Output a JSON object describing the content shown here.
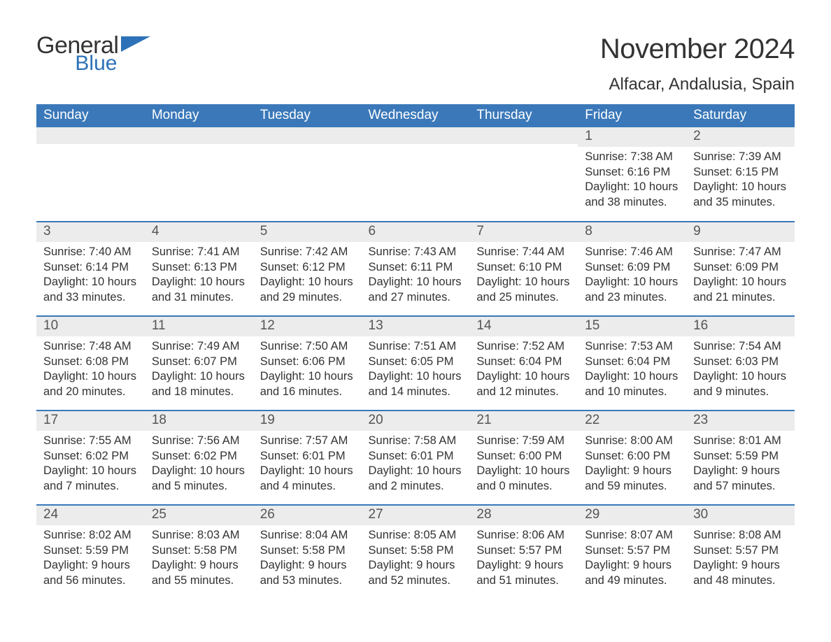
{
  "brand": {
    "line1": "General",
    "line2": "Blue",
    "accent_color": "#2d72b8"
  },
  "title": "November 2024",
  "location": "Alfacar, Andalusia, Spain",
  "colors": {
    "header_bg": "#3a78b9",
    "header_text": "#ffffff",
    "band_bg": "#ececec",
    "row_divider": "#3a78b9",
    "body_text": "#333333",
    "daynum_text": "#555555"
  },
  "layout": {
    "start_weekday": "Sunday",
    "first_day_column_index": 5,
    "weeks": 5
  },
  "weekdays": [
    "Sunday",
    "Monday",
    "Tuesday",
    "Wednesday",
    "Thursday",
    "Friday",
    "Saturday"
  ],
  "days": [
    {
      "n": 1,
      "sunrise": "7:38 AM",
      "sunset": "6:16 PM",
      "daylight": "10 hours and 38 minutes."
    },
    {
      "n": 2,
      "sunrise": "7:39 AM",
      "sunset": "6:15 PM",
      "daylight": "10 hours and 35 minutes."
    },
    {
      "n": 3,
      "sunrise": "7:40 AM",
      "sunset": "6:14 PM",
      "daylight": "10 hours and 33 minutes."
    },
    {
      "n": 4,
      "sunrise": "7:41 AM",
      "sunset": "6:13 PM",
      "daylight": "10 hours and 31 minutes."
    },
    {
      "n": 5,
      "sunrise": "7:42 AM",
      "sunset": "6:12 PM",
      "daylight": "10 hours and 29 minutes."
    },
    {
      "n": 6,
      "sunrise": "7:43 AM",
      "sunset": "6:11 PM",
      "daylight": "10 hours and 27 minutes."
    },
    {
      "n": 7,
      "sunrise": "7:44 AM",
      "sunset": "6:10 PM",
      "daylight": "10 hours and 25 minutes."
    },
    {
      "n": 8,
      "sunrise": "7:46 AM",
      "sunset": "6:09 PM",
      "daylight": "10 hours and 23 minutes."
    },
    {
      "n": 9,
      "sunrise": "7:47 AM",
      "sunset": "6:09 PM",
      "daylight": "10 hours and 21 minutes."
    },
    {
      "n": 10,
      "sunrise": "7:48 AM",
      "sunset": "6:08 PM",
      "daylight": "10 hours and 20 minutes."
    },
    {
      "n": 11,
      "sunrise": "7:49 AM",
      "sunset": "6:07 PM",
      "daylight": "10 hours and 18 minutes."
    },
    {
      "n": 12,
      "sunrise": "7:50 AM",
      "sunset": "6:06 PM",
      "daylight": "10 hours and 16 minutes."
    },
    {
      "n": 13,
      "sunrise": "7:51 AM",
      "sunset": "6:05 PM",
      "daylight": "10 hours and 14 minutes."
    },
    {
      "n": 14,
      "sunrise": "7:52 AM",
      "sunset": "6:04 PM",
      "daylight": "10 hours and 12 minutes."
    },
    {
      "n": 15,
      "sunrise": "7:53 AM",
      "sunset": "6:04 PM",
      "daylight": "10 hours and 10 minutes."
    },
    {
      "n": 16,
      "sunrise": "7:54 AM",
      "sunset": "6:03 PM",
      "daylight": "10 hours and 9 minutes."
    },
    {
      "n": 17,
      "sunrise": "7:55 AM",
      "sunset": "6:02 PM",
      "daylight": "10 hours and 7 minutes."
    },
    {
      "n": 18,
      "sunrise": "7:56 AM",
      "sunset": "6:02 PM",
      "daylight": "10 hours and 5 minutes."
    },
    {
      "n": 19,
      "sunrise": "7:57 AM",
      "sunset": "6:01 PM",
      "daylight": "10 hours and 4 minutes."
    },
    {
      "n": 20,
      "sunrise": "7:58 AM",
      "sunset": "6:01 PM",
      "daylight": "10 hours and 2 minutes."
    },
    {
      "n": 21,
      "sunrise": "7:59 AM",
      "sunset": "6:00 PM",
      "daylight": "10 hours and 0 minutes."
    },
    {
      "n": 22,
      "sunrise": "8:00 AM",
      "sunset": "6:00 PM",
      "daylight": "9 hours and 59 minutes."
    },
    {
      "n": 23,
      "sunrise": "8:01 AM",
      "sunset": "5:59 PM",
      "daylight": "9 hours and 57 minutes."
    },
    {
      "n": 24,
      "sunrise": "8:02 AM",
      "sunset": "5:59 PM",
      "daylight": "9 hours and 56 minutes."
    },
    {
      "n": 25,
      "sunrise": "8:03 AM",
      "sunset": "5:58 PM",
      "daylight": "9 hours and 55 minutes."
    },
    {
      "n": 26,
      "sunrise": "8:04 AM",
      "sunset": "5:58 PM",
      "daylight": "9 hours and 53 minutes."
    },
    {
      "n": 27,
      "sunrise": "8:05 AM",
      "sunset": "5:58 PM",
      "daylight": "9 hours and 52 minutes."
    },
    {
      "n": 28,
      "sunrise": "8:06 AM",
      "sunset": "5:57 PM",
      "daylight": "9 hours and 51 minutes."
    },
    {
      "n": 29,
      "sunrise": "8:07 AM",
      "sunset": "5:57 PM",
      "daylight": "9 hours and 49 minutes."
    },
    {
      "n": 30,
      "sunrise": "8:08 AM",
      "sunset": "5:57 PM",
      "daylight": "9 hours and 48 minutes."
    }
  ],
  "labels": {
    "sunrise": "Sunrise: ",
    "sunset": "Sunset: ",
    "daylight": "Daylight: "
  }
}
